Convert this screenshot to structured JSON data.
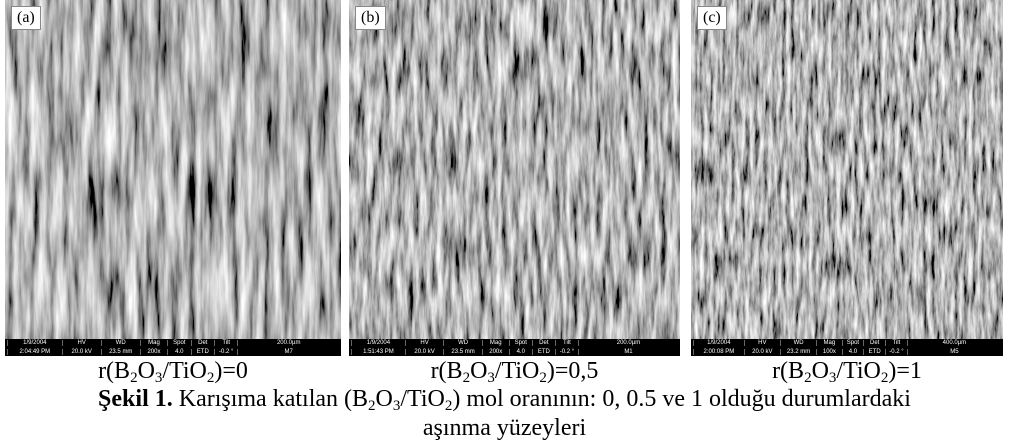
{
  "panels": [
    {
      "label": "(a)",
      "info_top": [
        "1/9/2004",
        "HV",
        "WD",
        "Mag",
        "Spot",
        "Det",
        "Tilt",
        "200.0µm"
      ],
      "info_bottom": [
        "2:04:49 PM",
        "20.0 kV",
        "23.5 mm",
        "200x",
        "4.0",
        "ETD",
        "-0.2 °",
        "M7"
      ],
      "caption": [
        "r(B",
        "2",
        "O",
        "3",
        "/TiO",
        "2",
        ")=0"
      ]
    },
    {
      "label": "(b)",
      "info_top": [
        "1/9/2004",
        "HV",
        "WD",
        "Mag",
        "Spot",
        "Det",
        "Tilt",
        "200.0µm"
      ],
      "info_bottom": [
        "1:51:43 PM",
        "20.0 kV",
        "23.5 mm",
        "200x",
        "4.0",
        "ETD",
        "-0.2 °",
        "M1"
      ],
      "caption": [
        "r(B",
        "2",
        "O",
        "3",
        "/TiO",
        "2",
        ")=0,5"
      ]
    },
    {
      "label": "(c)",
      "info_top": [
        "1/9/2004",
        "HV",
        "WD",
        "Mag",
        "Spot",
        "Det",
        "Tilt",
        "400.0µm"
      ],
      "info_bottom": [
        "2:00:08 PM",
        "20.0 kV",
        "23.2 mm",
        "100x",
        "4.0",
        "ETD",
        "-0.2 °",
        "M5"
      ],
      "caption": [
        "r(B",
        "2",
        "O",
        "3",
        "/TiO",
        "2",
        ")=1"
      ]
    }
  ],
  "figure_caption": [
    "Şekil 1.",
    " Karışıma katılan (B",
    "2",
    "O",
    "3",
    "/TiO",
    "2",
    ") mol oranının: 0, 0.5 ve 1 olduğu durumlardaki",
    "aşınma yüzeyleri"
  ]
}
